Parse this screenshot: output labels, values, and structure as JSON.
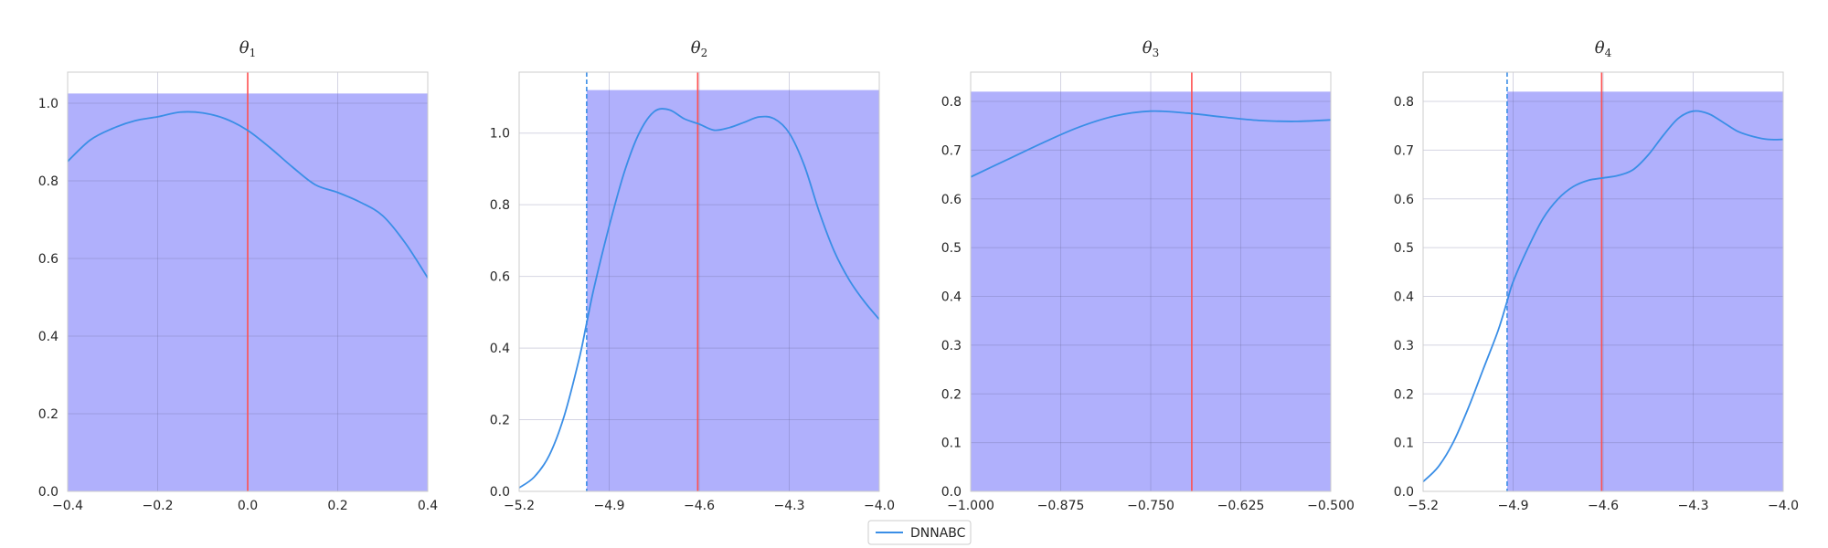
{
  "figure": {
    "legend": {
      "label": "DNNABC",
      "color": "#3a8ee6",
      "placement": "bottom-center"
    }
  },
  "chart_data": [
    {
      "type": "line",
      "title": "θ",
      "title_subscript": "1",
      "xlim": [
        -0.4,
        0.4
      ],
      "ylim": [
        0.0,
        1.08
      ],
      "xticks": [
        -0.4,
        -0.2,
        0.0,
        0.2,
        0.4
      ],
      "xtick_labels": [
        "−0.4",
        "−0.2",
        "0.0",
        "0.2",
        "0.4"
      ],
      "yticks": [
        0.0,
        0.2,
        0.4,
        0.6,
        0.8,
        1.0
      ],
      "ytick_labels": [
        "0.0",
        "0.2",
        "0.4",
        "0.6",
        "0.8",
        "1.0"
      ],
      "grid": true,
      "band": {
        "x0": -0.4,
        "x1": 0.4,
        "top": 1.025,
        "color": "#b0b0fc"
      },
      "true_value": 0.0,
      "true_color": "#ff5050",
      "dashed_line": null,
      "series": [
        {
          "name": "DNNABC",
          "x": [
            -0.4,
            -0.35,
            -0.3,
            -0.25,
            -0.2,
            -0.15,
            -0.1,
            -0.05,
            0.0,
            0.05,
            0.1,
            0.15,
            0.2,
            0.25,
            0.3,
            0.35,
            0.4
          ],
          "y": [
            0.85,
            0.905,
            0.935,
            0.955,
            0.965,
            0.977,
            0.975,
            0.96,
            0.93,
            0.885,
            0.835,
            0.79,
            0.77,
            0.745,
            0.71,
            0.64,
            0.55
          ]
        }
      ]
    },
    {
      "type": "line",
      "title": "θ",
      "title_subscript": "2",
      "xlim": [
        -5.2,
        -4.0
      ],
      "ylim": [
        0.0,
        1.17
      ],
      "xticks": [
        -5.2,
        -4.9,
        -4.6,
        -4.3,
        -4.0
      ],
      "xtick_labels": [
        "−5.2",
        "−4.9",
        "−4.6",
        "−4.3",
        "−4.0"
      ],
      "yticks": [
        0.0,
        0.2,
        0.4,
        0.6,
        0.8,
        1.0
      ],
      "ytick_labels": [
        "0.0",
        "0.2",
        "0.4",
        "0.6",
        "0.8",
        "1.0"
      ],
      "grid": true,
      "band": {
        "x0": -4.975,
        "x1": -4.0,
        "top": 1.12,
        "color": "#b0b0fc"
      },
      "true_value": -4.605,
      "true_color": "#ff5050",
      "dashed_line": -4.975,
      "series": [
        {
          "name": "DNNABC",
          "x": [
            -5.2,
            -5.15,
            -5.1,
            -5.05,
            -5.0,
            -4.975,
            -4.95,
            -4.9,
            -4.85,
            -4.8,
            -4.75,
            -4.7,
            -4.65,
            -4.6,
            -4.55,
            -4.5,
            -4.45,
            -4.4,
            -4.35,
            -4.3,
            -4.25,
            -4.2,
            -4.15,
            -4.1,
            -4.05,
            -4.0
          ],
          "y": [
            0.01,
            0.04,
            0.1,
            0.21,
            0.37,
            0.47,
            0.57,
            0.74,
            0.89,
            1.0,
            1.06,
            1.065,
            1.04,
            1.025,
            1.008,
            1.015,
            1.03,
            1.045,
            1.04,
            1.0,
            0.91,
            0.78,
            0.67,
            0.59,
            0.53,
            0.48
          ]
        }
      ]
    },
    {
      "type": "line",
      "title": "θ",
      "title_subscript": "3",
      "xlim": [
        -1.0,
        -0.5
      ],
      "ylim": [
        0.0,
        0.86
      ],
      "xticks": [
        -1.0,
        -0.875,
        -0.75,
        -0.625,
        -0.5
      ],
      "xtick_labels": [
        "−1.000",
        "−0.875",
        "−0.750",
        "−0.625",
        "−0.500"
      ],
      "yticks": [
        0.0,
        0.1,
        0.2,
        0.3,
        0.4,
        0.5,
        0.6,
        0.7,
        0.8
      ],
      "ytick_labels": [
        "0.0",
        "0.1",
        "0.2",
        "0.3",
        "0.4",
        "0.5",
        "0.6",
        "0.7",
        "0.8"
      ],
      "grid": true,
      "band": {
        "x0": -1.0,
        "x1": -0.5,
        "top": 0.82,
        "color": "#b0b0fc"
      },
      "true_value": -0.693,
      "true_color": "#ff5050",
      "dashed_line": null,
      "series": [
        {
          "name": "DNNABC",
          "x": [
            -1.0,
            -0.95,
            -0.9,
            -0.85,
            -0.8,
            -0.75,
            -0.7,
            -0.65,
            -0.6,
            -0.55,
            -0.5
          ],
          "y": [
            0.645,
            0.68,
            0.715,
            0.747,
            0.77,
            0.78,
            0.776,
            0.768,
            0.761,
            0.759,
            0.762
          ]
        }
      ]
    },
    {
      "type": "line",
      "title": "θ",
      "title_subscript": "4",
      "xlim": [
        -5.2,
        -4.0
      ],
      "ylim": [
        0.0,
        0.86
      ],
      "xticks": [
        -5.2,
        -4.9,
        -4.6,
        -4.3,
        -4.0
      ],
      "xtick_labels": [
        "−5.2",
        "−4.9",
        "−4.6",
        "−4.3",
        "−4.0"
      ],
      "yticks": [
        0.0,
        0.1,
        0.2,
        0.3,
        0.4,
        0.5,
        0.6,
        0.7,
        0.8
      ],
      "ytick_labels": [
        "0.0",
        "0.1",
        "0.2",
        "0.3",
        "0.4",
        "0.5",
        "0.6",
        "0.7",
        "0.8"
      ],
      "grid": true,
      "band": {
        "x0": -4.92,
        "x1": -4.0,
        "top": 0.82,
        "color": "#b0b0fc"
      },
      "true_value": -4.605,
      "true_color": "#ff5050",
      "dashed_line": -4.92,
      "series": [
        {
          "name": "DNNABC",
          "x": [
            -5.2,
            -5.15,
            -5.1,
            -5.05,
            -5.0,
            -4.95,
            -4.92,
            -4.9,
            -4.85,
            -4.8,
            -4.75,
            -4.7,
            -4.65,
            -4.6,
            -4.55,
            -4.5,
            -4.45,
            -4.4,
            -4.35,
            -4.3,
            -4.25,
            -4.2,
            -4.15,
            -4.1,
            -4.05,
            -4.0
          ],
          "y": [
            0.02,
            0.05,
            0.1,
            0.17,
            0.25,
            0.33,
            0.39,
            0.43,
            0.5,
            0.56,
            0.6,
            0.625,
            0.638,
            0.643,
            0.648,
            0.66,
            0.69,
            0.73,
            0.765,
            0.78,
            0.775,
            0.757,
            0.738,
            0.728,
            0.722,
            0.722
          ]
        }
      ]
    }
  ]
}
